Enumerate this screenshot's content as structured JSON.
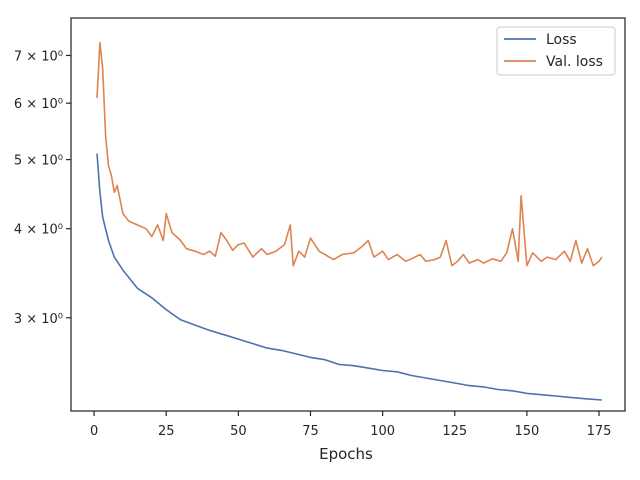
{
  "chart_data": {
    "type": "line",
    "xlabel": "Epochs",
    "ylabel": "",
    "y_scale": "log",
    "grid": false,
    "legend_position": "top-right",
    "xlim": [
      -8,
      184
    ],
    "ylim": [
      2.22,
      7.9
    ],
    "x_ticks": [
      0,
      25,
      50,
      75,
      100,
      125,
      150,
      175
    ],
    "y_ticks": [
      {
        "value": 3,
        "label": "3 × 10⁰"
      },
      {
        "value": 4,
        "label": "4 × 10⁰"
      },
      {
        "value": 5,
        "label": "5 × 10⁰"
      },
      {
        "value": 6,
        "label": "6 × 10⁰"
      },
      {
        "value": 7,
        "label": "7 × 10⁰"
      }
    ],
    "series": [
      {
        "name": "Loss",
        "color": "#4c72b0",
        "points": [
          [
            1,
            5.1
          ],
          [
            2,
            4.5
          ],
          [
            3,
            4.15
          ],
          [
            5,
            3.85
          ],
          [
            7,
            3.65
          ],
          [
            10,
            3.5
          ],
          [
            15,
            3.3
          ],
          [
            20,
            3.2
          ],
          [
            25,
            3.08
          ],
          [
            30,
            2.98
          ],
          [
            35,
            2.93
          ],
          [
            40,
            2.88
          ],
          [
            45,
            2.84
          ],
          [
            50,
            2.8
          ],
          [
            55,
            2.76
          ],
          [
            60,
            2.72
          ],
          [
            65,
            2.7
          ],
          [
            70,
            2.67
          ],
          [
            75,
            2.64
          ],
          [
            80,
            2.62
          ],
          [
            85,
            2.58
          ],
          [
            90,
            2.57
          ],
          [
            95,
            2.55
          ],
          [
            100,
            2.53
          ],
          [
            105,
            2.52
          ],
          [
            110,
            2.49
          ],
          [
            115,
            2.47
          ],
          [
            120,
            2.45
          ],
          [
            125,
            2.43
          ],
          [
            130,
            2.41
          ],
          [
            135,
            2.4
          ],
          [
            140,
            2.38
          ],
          [
            145,
            2.37
          ],
          [
            150,
            2.35
          ],
          [
            155,
            2.34
          ],
          [
            160,
            2.33
          ],
          [
            165,
            2.32
          ],
          [
            170,
            2.31
          ],
          [
            176,
            2.3
          ]
        ]
      },
      {
        "name": "Val. loss",
        "color": "#dd8452",
        "points": [
          [
            1,
            6.1
          ],
          [
            2,
            7.3
          ],
          [
            3,
            6.7
          ],
          [
            4,
            5.4
          ],
          [
            5,
            4.9
          ],
          [
            6,
            4.75
          ],
          [
            7,
            4.5
          ],
          [
            8,
            4.6
          ],
          [
            10,
            4.2
          ],
          [
            12,
            4.1
          ],
          [
            15,
            4.05
          ],
          [
            18,
            4.0
          ],
          [
            20,
            3.9
          ],
          [
            22,
            4.05
          ],
          [
            24,
            3.85
          ],
          [
            25,
            4.2
          ],
          [
            27,
            3.95
          ],
          [
            30,
            3.85
          ],
          [
            32,
            3.75
          ],
          [
            35,
            3.72
          ],
          [
            38,
            3.68
          ],
          [
            40,
            3.72
          ],
          [
            42,
            3.66
          ],
          [
            44,
            3.95
          ],
          [
            46,
            3.85
          ],
          [
            48,
            3.73
          ],
          [
            50,
            3.8
          ],
          [
            52,
            3.82
          ],
          [
            55,
            3.65
          ],
          [
            58,
            3.75
          ],
          [
            60,
            3.68
          ],
          [
            63,
            3.72
          ],
          [
            66,
            3.8
          ],
          [
            68,
            4.05
          ],
          [
            69,
            3.55
          ],
          [
            71,
            3.72
          ],
          [
            73,
            3.65
          ],
          [
            75,
            3.88
          ],
          [
            78,
            3.72
          ],
          [
            80,
            3.68
          ],
          [
            83,
            3.62
          ],
          [
            86,
            3.68
          ],
          [
            90,
            3.7
          ],
          [
            93,
            3.78
          ],
          [
            95,
            3.85
          ],
          [
            97,
            3.65
          ],
          [
            100,
            3.72
          ],
          [
            102,
            3.62
          ],
          [
            105,
            3.68
          ],
          [
            108,
            3.6
          ],
          [
            110,
            3.63
          ],
          [
            113,
            3.68
          ],
          [
            115,
            3.6
          ],
          [
            118,
            3.62
          ],
          [
            120,
            3.65
          ],
          [
            122,
            3.85
          ],
          [
            124,
            3.55
          ],
          [
            126,
            3.6
          ],
          [
            128,
            3.68
          ],
          [
            130,
            3.58
          ],
          [
            133,
            3.62
          ],
          [
            135,
            3.58
          ],
          [
            138,
            3.63
          ],
          [
            141,
            3.6
          ],
          [
            143,
            3.7
          ],
          [
            145,
            4.0
          ],
          [
            147,
            3.6
          ],
          [
            148,
            4.45
          ],
          [
            150,
            3.55
          ],
          [
            152,
            3.7
          ],
          [
            155,
            3.6
          ],
          [
            157,
            3.65
          ],
          [
            160,
            3.62
          ],
          [
            163,
            3.72
          ],
          [
            165,
            3.6
          ],
          [
            167,
            3.85
          ],
          [
            169,
            3.58
          ],
          [
            171,
            3.75
          ],
          [
            173,
            3.55
          ],
          [
            175,
            3.6
          ],
          [
            176,
            3.65
          ]
        ]
      }
    ]
  }
}
